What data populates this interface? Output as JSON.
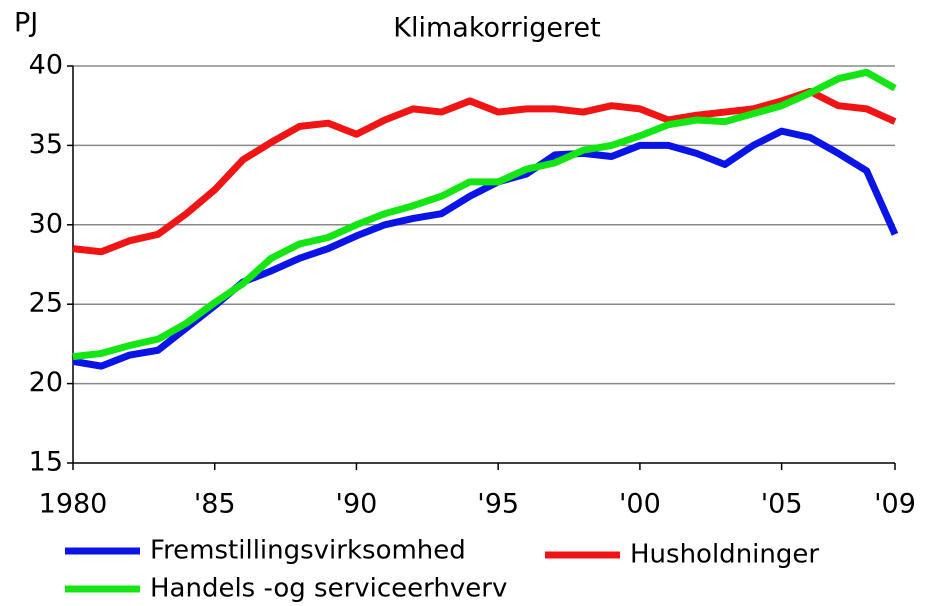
{
  "chart_data": {
    "type": "line",
    "title": "Klimakorrigeret",
    "y_label": "PJ",
    "x": [
      1980,
      1981,
      1982,
      1983,
      1984,
      1985,
      1986,
      1987,
      1988,
      1989,
      1990,
      1991,
      1992,
      1993,
      1994,
      1995,
      1996,
      1997,
      1998,
      1999,
      2000,
      2001,
      2002,
      2003,
      2004,
      2005,
      2006,
      2007,
      2008,
      2009
    ],
    "series": [
      {
        "name": "Fremstillingsvirksomhed",
        "color": "#0a14e6",
        "values": [
          21.4,
          21.1,
          21.8,
          22.1,
          23.5,
          24.9,
          26.4,
          27.1,
          27.9,
          28.5,
          29.3,
          30.0,
          30.4,
          30.7,
          31.8,
          32.7,
          33.2,
          34.4,
          34.5,
          34.3,
          35.0,
          35.0,
          34.5,
          33.8,
          35.0,
          35.9,
          35.5,
          34.5,
          33.4,
          29.4
        ]
      },
      {
        "name": "Husholdninger",
        "color": "#f01414",
        "values": [
          28.5,
          28.3,
          29.0,
          29.4,
          30.7,
          32.2,
          34.1,
          35.2,
          36.2,
          36.4,
          35.7,
          36.6,
          37.3,
          37.1,
          37.8,
          37.1,
          37.3,
          37.3,
          37.1,
          37.5,
          37.3,
          36.6,
          36.9,
          37.1,
          37.3,
          37.8,
          38.4,
          37.5,
          37.3,
          36.5
        ]
      },
      {
        "name": "Handels -og serviceerhverv",
        "color": "#14e614",
        "values": [
          21.7,
          21.9,
          22.4,
          22.8,
          23.8,
          25.1,
          26.3,
          27.9,
          28.8,
          29.2,
          30.0,
          30.7,
          31.2,
          31.8,
          32.7,
          32.7,
          33.5,
          33.9,
          34.7,
          35.0,
          35.6,
          36.3,
          36.6,
          36.5,
          37.0,
          37.5,
          38.3,
          39.2,
          39.6,
          38.6
        ]
      }
    ],
    "xlim": [
      1980,
      2009
    ],
    "xticks": [
      1980,
      {
        "value": 1985,
        "label": "'85"
      },
      {
        "value": 1990,
        "label": "'90"
      },
      {
        "value": 1995,
        "label": "'95"
      },
      {
        "value": 2000,
        "label": "'00"
      },
      {
        "value": 2005,
        "label": "'05"
      },
      {
        "value": 2009,
        "label": "'09"
      }
    ],
    "ylim": [
      15,
      40
    ],
    "yticks": [
      15,
      20,
      25,
      30,
      35,
      40
    ],
    "grid": true
  }
}
